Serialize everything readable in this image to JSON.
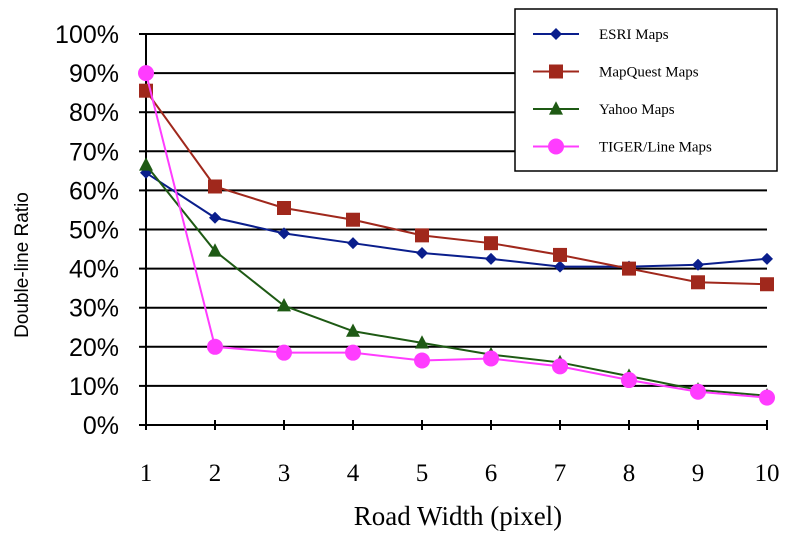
{
  "chart_data": {
    "type": "line",
    "title": "",
    "xlabel": "Road Width (pixel)",
    "ylabel": "Double-line Ratio",
    "x": [
      1,
      2,
      3,
      4,
      5,
      6,
      7,
      8,
      9,
      10
    ],
    "xlim": [
      1,
      10
    ],
    "ylim": [
      0,
      100
    ],
    "yticks": [
      "0%",
      "10%",
      "20%",
      "30%",
      "40%",
      "50%",
      "60%",
      "70%",
      "80%",
      "90%",
      "100%"
    ],
    "grid": "horizontal",
    "legend_position": "top-right",
    "series": [
      {
        "name": "ESRI Maps",
        "color": "#0a1e8c",
        "marker": "diamond",
        "values": [
          64.5,
          53,
          49,
          46.5,
          44,
          42.5,
          40.5,
          40.5,
          41,
          42.5
        ]
      },
      {
        "name": "MapQuest Maps",
        "color": "#a0281c",
        "marker": "square",
        "values": [
          85.5,
          61,
          55.5,
          52.5,
          48.5,
          46.5,
          43.5,
          40,
          36.5,
          36
        ]
      },
      {
        "name": "Yahoo Maps",
        "color": "#1e5a14",
        "marker": "triangle",
        "values": [
          66.5,
          44.5,
          30.5,
          24,
          21,
          18,
          16,
          12.5,
          9,
          7.5
        ]
      },
      {
        "name": "TIGER/Line Maps",
        "color": "#ff3cff",
        "marker": "circle",
        "values": [
          90,
          20,
          18.5,
          18.5,
          16.5,
          17,
          15,
          11.5,
          8.5,
          7
        ]
      }
    ]
  }
}
